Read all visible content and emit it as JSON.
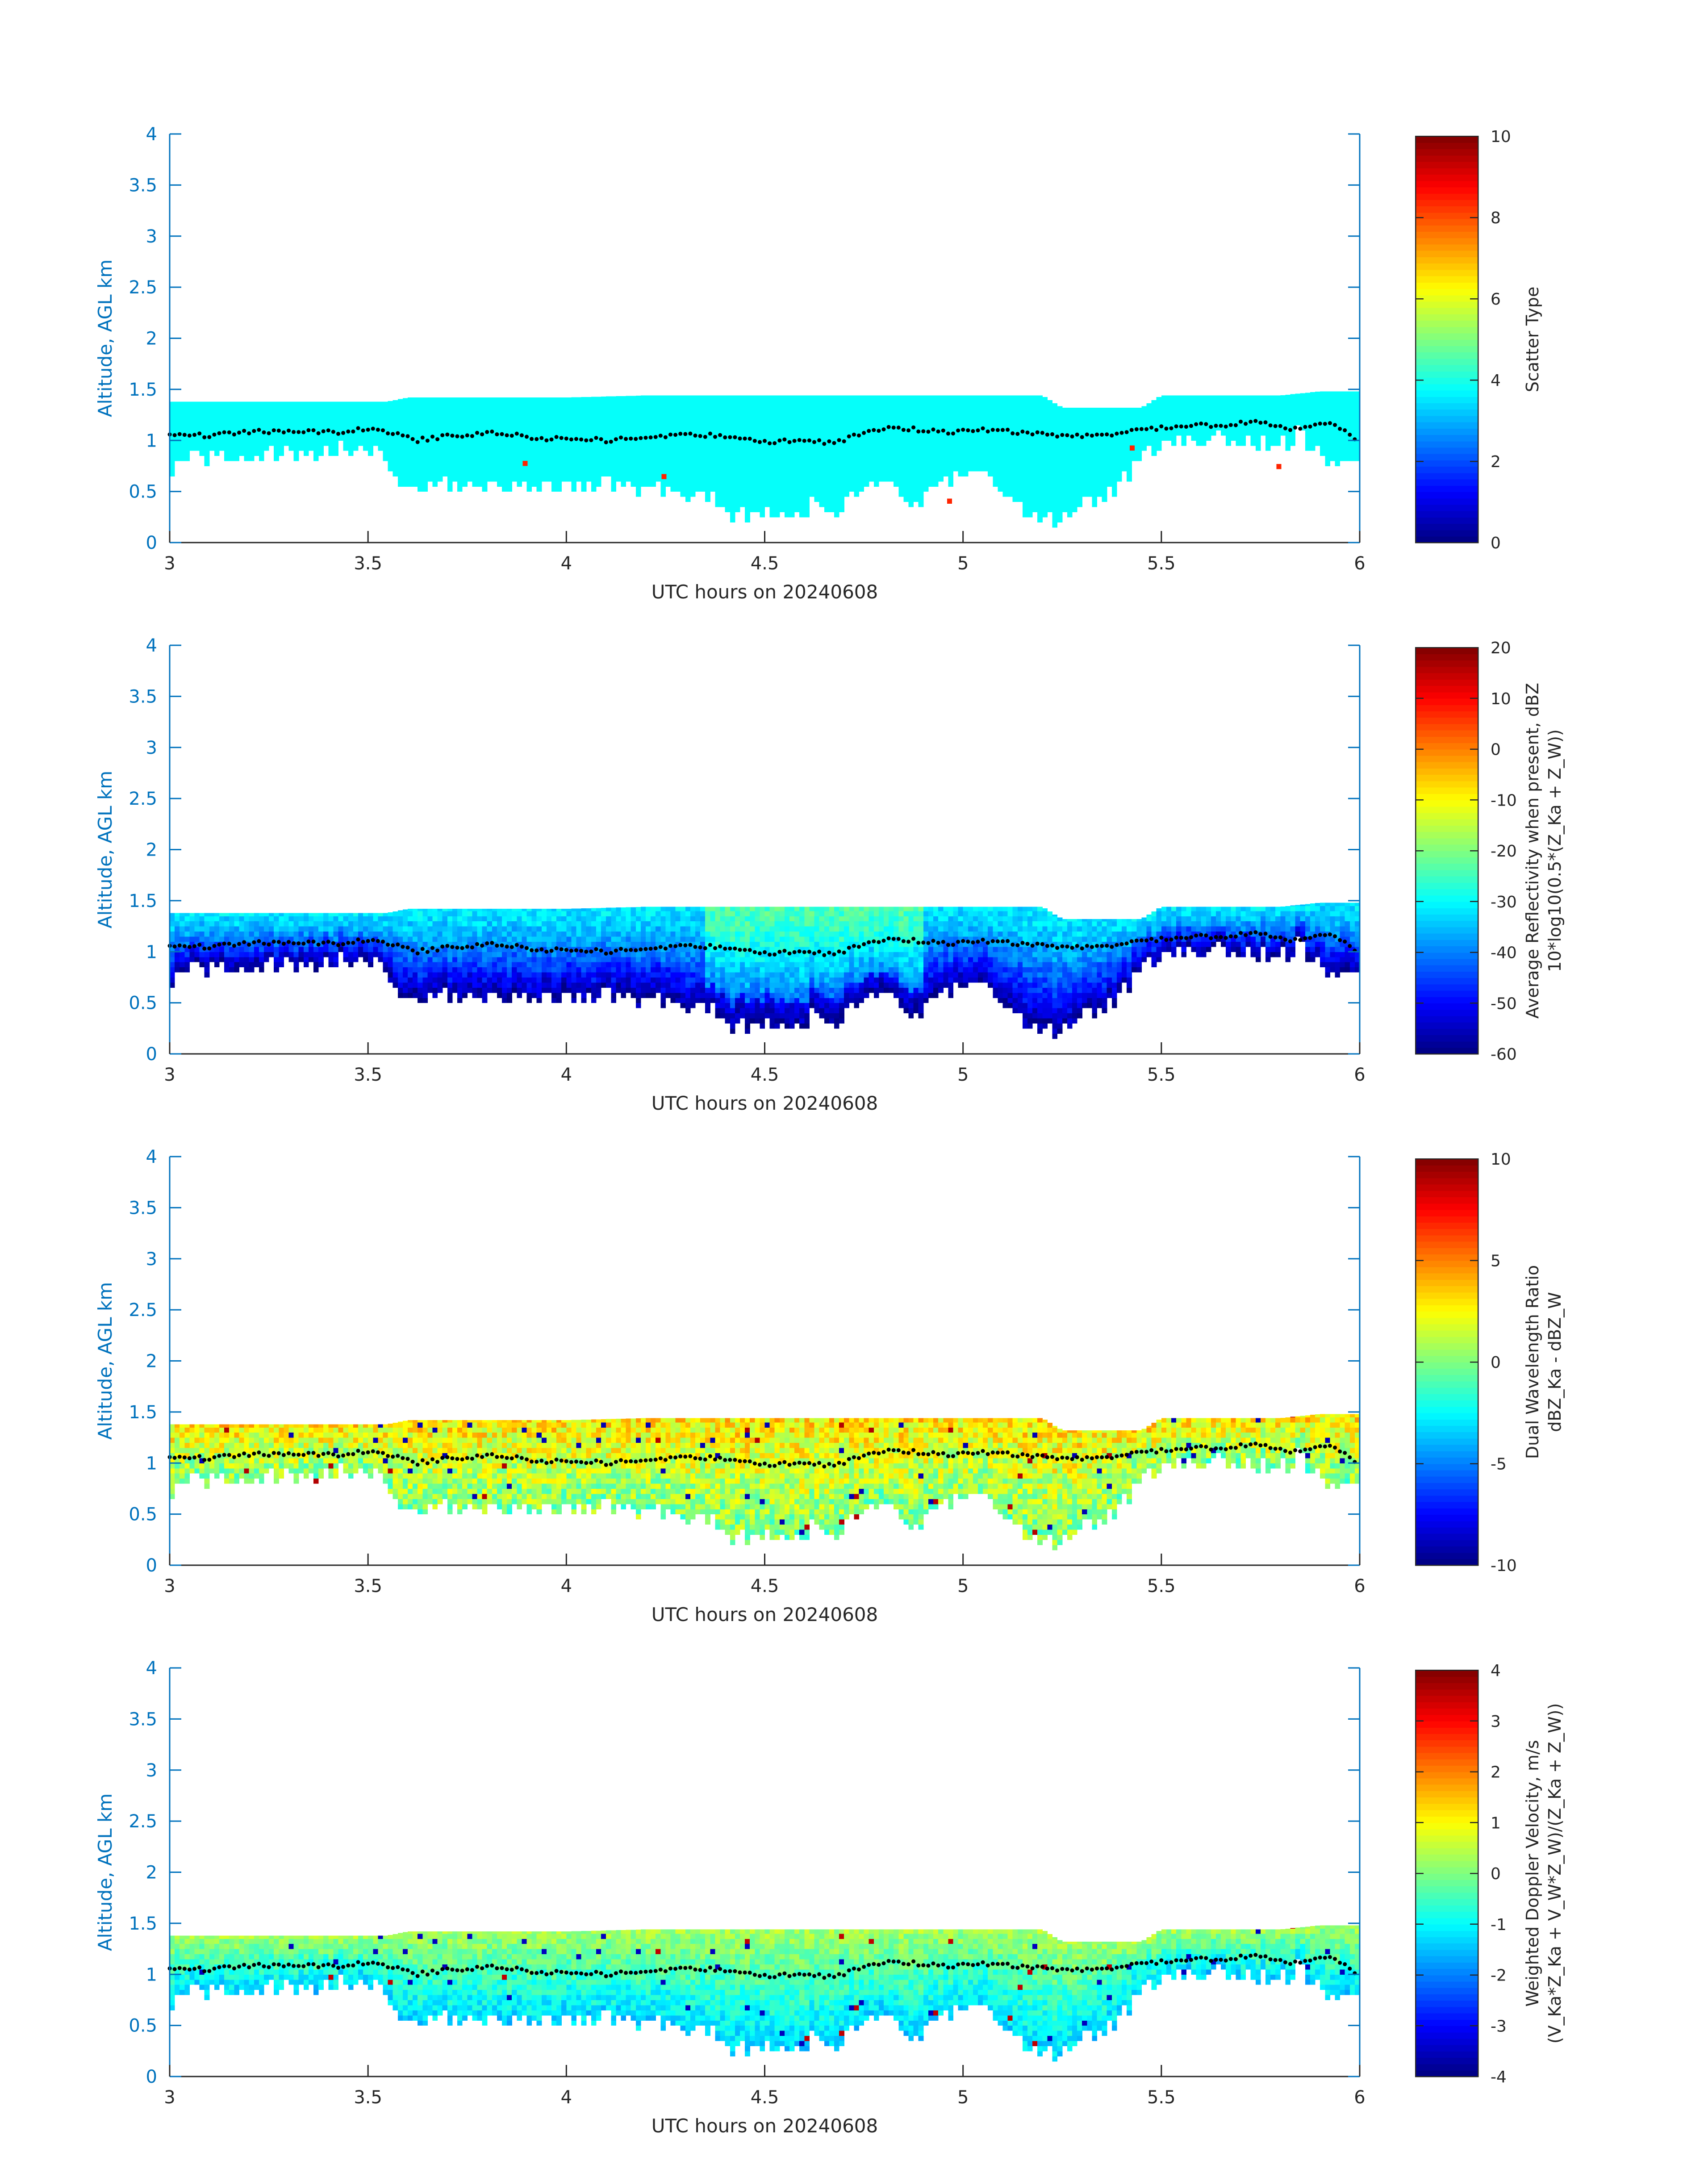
{
  "chart_data": [
    {
      "type": "heatmap",
      "xlabel": "UTC hours on 20240608",
      "ylabel": "Altitude, AGL km",
      "xlim": [
        3,
        6
      ],
      "ylim": [
        0,
        4
      ],
      "xticks": [
        "3",
        "3.5",
        "4",
        "4.5",
        "5",
        "5.5",
        "6"
      ],
      "yticks": [
        "0",
        "0.5",
        "1",
        "1.5",
        "2",
        "2.5",
        "3",
        "3.5",
        "4"
      ],
      "colorbar": {
        "label_lines": [
          "Scatter Type"
        ],
        "range": [
          0,
          10
        ],
        "ticks": [
          "0",
          "2",
          "4",
          "6",
          "8",
          "10"
        ],
        "colormap": "jet"
      },
      "field": {
        "kind": "scatter",
        "base_value": 3.8,
        "outliers": [
          {
            "x": 3.89,
            "y": 0.75,
            "value": 8.4
          },
          {
            "x": 4.24,
            "y": 0.62,
            "value": 8.4
          },
          {
            "x": 4.96,
            "y": 0.38,
            "value": 8.4
          },
          {
            "x": 5.42,
            "y": 0.9,
            "value": 8.4
          },
          {
            "x": 5.79,
            "y": 0.72,
            "value": 8.4
          }
        ]
      },
      "grid": false
    },
    {
      "type": "heatmap",
      "xlabel": "UTC hours on 20240608",
      "ylabel": "Altitude, AGL km",
      "xlim": [
        3,
        6
      ],
      "ylim": [
        0,
        4
      ],
      "xticks": [
        "3",
        "3.5",
        "4",
        "4.5",
        "5",
        "5.5",
        "6"
      ],
      "yticks": [
        "0",
        "0.5",
        "1",
        "1.5",
        "2",
        "2.5",
        "3",
        "3.5",
        "4"
      ],
      "colorbar": {
        "label_lines": [
          "Average Reflectivity when present, dBZ",
          "10*log10(0.5*(Z_Ka + Z_W))"
        ],
        "range": [
          -60,
          20
        ],
        "ticks": [
          "-60",
          "-50",
          "-40",
          "-30",
          "-20",
          "-10",
          "0",
          "10",
          "20"
        ],
        "colormap": "jet"
      },
      "field": {
        "kind": "reflectivity",
        "top_value": -32,
        "bottom_value": -58
      },
      "grid": false
    },
    {
      "type": "heatmap",
      "xlabel": "UTC hours on 20240608",
      "ylabel": "Altitude, AGL km",
      "xlim": [
        3,
        6
      ],
      "ylim": [
        0,
        4
      ],
      "xticks": [
        "3",
        "3.5",
        "4",
        "4.5",
        "5",
        "5.5",
        "6"
      ],
      "yticks": [
        "0",
        "0.5",
        "1",
        "1.5",
        "2",
        "2.5",
        "3",
        "3.5",
        "4"
      ],
      "colorbar": {
        "label_lines": [
          "Dual Wavelength Ratio",
          "dBZ_Ka - dBZ_W"
        ],
        "range": [
          -10,
          10
        ],
        "ticks": [
          "-10",
          "-5",
          "0",
          "5",
          "10"
        ],
        "colormap": "jet"
      },
      "field": {
        "kind": "dwr",
        "top_value": 3,
        "bottom_value": 0
      },
      "grid": false
    },
    {
      "type": "heatmap",
      "xlabel": "UTC hours on 20240608",
      "ylabel": "Altitude, AGL km",
      "xlim": [
        3,
        6
      ],
      "ylim": [
        0,
        4
      ],
      "xticks": [
        "3",
        "3.5",
        "4",
        "4.5",
        "5",
        "5.5",
        "6"
      ],
      "yticks": [
        "0",
        "0.5",
        "1",
        "1.5",
        "2",
        "2.5",
        "3",
        "3.5",
        "4"
      ],
      "colorbar": {
        "label_lines": [
          "Weighted Doppler Velocity, m/s",
          "(V_Ka*Z_Ka + V_W*Z_W)/(Z_Ka + Z_W))"
        ],
        "range": [
          -4,
          4
        ],
        "ticks": [
          "-4",
          "-3",
          "-2",
          "-1",
          "0",
          "1",
          "2",
          "3",
          "4"
        ],
        "colormap": "jet"
      },
      "field": {
        "kind": "velocity",
        "top_value": 0.3,
        "bottom_value": -1.3
      },
      "grid": false
    }
  ],
  "cloud_geometry": {
    "x_step": 0.0125,
    "y_step": 0.05,
    "top_km": [
      [
        3.0,
        1.38
      ],
      [
        3.5,
        1.38
      ],
      [
        3.55,
        1.38
      ],
      [
        3.6,
        1.42
      ],
      [
        4.0,
        1.42
      ],
      [
        4.2,
        1.44
      ],
      [
        4.8,
        1.44
      ],
      [
        5.2,
        1.44
      ],
      [
        5.25,
        1.32
      ],
      [
        5.45,
        1.32
      ],
      [
        5.5,
        1.44
      ],
      [
        5.8,
        1.44
      ],
      [
        5.9,
        1.48
      ],
      [
        6.0,
        1.48
      ]
    ],
    "base_km": [
      [
        3.0,
        0.7
      ],
      [
        3.03,
        0.82
      ],
      [
        3.1,
        0.85
      ],
      [
        3.2,
        0.88
      ],
      [
        3.35,
        0.9
      ],
      [
        3.45,
        0.95
      ],
      [
        3.52,
        0.92
      ],
      [
        3.55,
        0.75
      ],
      [
        3.6,
        0.55
      ],
      [
        3.7,
        0.6
      ],
      [
        3.8,
        0.55
      ],
      [
        3.9,
        0.62
      ],
      [
        3.95,
        0.55
      ],
      [
        4.0,
        0.6
      ],
      [
        4.1,
        0.58
      ],
      [
        4.2,
        0.55
      ],
      [
        4.3,
        0.5
      ],
      [
        4.38,
        0.45
      ],
      [
        4.43,
        0.25
      ],
      [
        4.48,
        0.35
      ],
      [
        4.52,
        0.3
      ],
      [
        4.58,
        0.25
      ],
      [
        4.62,
        0.4
      ],
      [
        4.68,
        0.35
      ],
      [
        4.72,
        0.5
      ],
      [
        4.8,
        0.62
      ],
      [
        4.87,
        0.4
      ],
      [
        4.93,
        0.55
      ],
      [
        5.0,
        0.72
      ],
      [
        5.06,
        0.68
      ],
      [
        5.12,
        0.4
      ],
      [
        5.17,
        0.32
      ],
      [
        5.2,
        0.22
      ],
      [
        5.25,
        0.25
      ],
      [
        5.3,
        0.45
      ],
      [
        5.38,
        0.5
      ],
      [
        5.42,
        0.72
      ],
      [
        5.48,
        0.92
      ],
      [
        5.55,
        1.05
      ],
      [
        5.68,
        1.05
      ],
      [
        5.75,
        1.0
      ],
      [
        5.8,
        0.98
      ],
      [
        5.85,
        1.08
      ],
      [
        5.92,
        0.85
      ],
      [
        5.98,
        0.78
      ],
      [
        6.0,
        0.7
      ]
    ],
    "dotted_line_km": [
      [
        3.0,
        1.05
      ],
      [
        3.1,
        1.05
      ],
      [
        3.2,
        1.08
      ],
      [
        3.3,
        1.1
      ],
      [
        3.42,
        1.08
      ],
      [
        3.52,
        1.12
      ],
      [
        3.62,
        1.0
      ],
      [
        3.72,
        1.05
      ],
      [
        3.82,
        1.08
      ],
      [
        3.92,
        1.02
      ],
      [
        4.02,
        1.02
      ],
      [
        4.1,
        1.0
      ],
      [
        4.2,
        1.03
      ],
      [
        4.3,
        1.05
      ],
      [
        4.42,
        1.05
      ],
      [
        4.5,
        0.98
      ],
      [
        4.58,
        1.0
      ],
      [
        4.68,
        0.98
      ],
      [
        4.76,
        1.1
      ],
      [
        4.85,
        1.12
      ],
      [
        4.95,
        1.08
      ],
      [
        5.05,
        1.1
      ],
      [
        5.15,
        1.08
      ],
      [
        5.25,
        1.05
      ],
      [
        5.35,
        1.05
      ],
      [
        5.45,
        1.1
      ],
      [
        5.55,
        1.15
      ],
      [
        5.65,
        1.15
      ],
      [
        5.75,
        1.18
      ],
      [
        5.85,
        1.1
      ],
      [
        5.93,
        1.18
      ],
      [
        6.0,
        0.98
      ]
    ]
  }
}
